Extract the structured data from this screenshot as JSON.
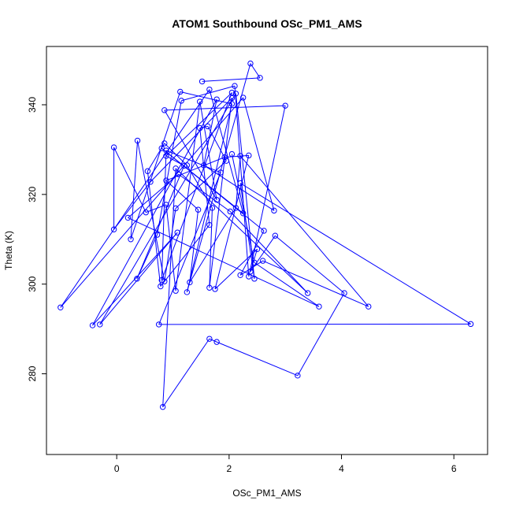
{
  "chart_data": {
    "type": "line",
    "title": "ATOM1 Southbound OSc_PM1_AMS",
    "xlabel": "OSc_PM1_AMS",
    "ylabel": "Theta (K)",
    "xlim": [
      -1.25,
      6.6
    ],
    "ylim": [
      262,
      353
    ],
    "xticks": [
      0,
      2,
      4,
      6
    ],
    "yticks": [
      280,
      300,
      320,
      340
    ],
    "grid": false,
    "marker": "open-circle",
    "color": "#0000ff",
    "series": [
      {
        "points": [
          [
            1.52,
            345.2
          ],
          [
            2.55,
            346.0
          ],
          [
            2.38,
            349.2
          ],
          [
            1.25,
            298.2
          ],
          [
            2.05,
            340.2
          ],
          [
            1.13,
            342.9
          ],
          [
            0.25,
            310.0
          ],
          [
            0.37,
            332.0
          ],
          [
            0.85,
            300.6
          ],
          [
            1.05,
            316.9
          ],
          [
            1.95,
            327.5
          ],
          [
            1.62,
            335.2
          ],
          [
            1.48,
            334.8
          ],
          [
            1.65,
            313.2
          ],
          [
            0.78,
            299.5
          ],
          [
            0.55,
            325.2
          ],
          [
            0.85,
            331.4
          ],
          [
            1.25,
            326.5
          ],
          [
            1.7,
            317.0
          ],
          [
            1.65,
            299.2
          ],
          [
            2.05,
            341.5
          ],
          [
            0.6,
            322.8
          ],
          [
            -0.05,
            312.2
          ],
          [
            -0.05,
            330.5
          ],
          [
            0.52,
            316.0
          ],
          [
            0.88,
            317.7
          ],
          [
            1.05,
            298.5
          ],
          [
            1.48,
            340.7
          ],
          [
            1.78,
            318.8
          ],
          [
            0.85,
            338.8
          ],
          [
            3.0,
            339.8
          ],
          [
            2.35,
            301.7
          ],
          [
            2.1,
            344.2
          ],
          [
            1.15,
            340.9
          ],
          [
            0.72,
            311.0
          ],
          [
            0.36,
            301.2
          ],
          [
            1.2,
            326.4
          ],
          [
            0.88,
            328.6
          ],
          [
            2.05,
            342.7
          ],
          [
            0.8,
            300.9
          ],
          [
            0.88,
            329.8
          ],
          [
            1.85,
            324.9
          ],
          [
            0.75,
            291.0
          ],
          [
            6.3,
            291.1
          ],
          [
            2.2,
            322.5
          ],
          [
            2.45,
            301.2
          ],
          [
            2.12,
            342.5
          ],
          [
            -0.3,
            291.0
          ],
          [
            1.08,
            311.5
          ],
          [
            -0.43,
            290.8
          ],
          [
            1.78,
            341.2
          ],
          [
            1.55,
            326.5
          ],
          [
            2.8,
            316.4
          ],
          [
            2.25,
            341.6
          ],
          [
            -1.0,
            294.8
          ],
          [
            1.65,
            343.4
          ],
          [
            2.25,
            315.8
          ],
          [
            0.8,
            330.3
          ],
          [
            2.62,
            311.9
          ],
          [
            2.2,
            302.0
          ],
          [
            2.6,
            305.2
          ],
          [
            4.48,
            295.0
          ],
          [
            2.2,
            328.6
          ],
          [
            2.12,
            317.0
          ],
          [
            1.3,
            300.4
          ],
          [
            1.45,
            316.6
          ],
          [
            0.88,
            323.1
          ],
          [
            1.92,
            328.3
          ],
          [
            2.35,
            328.7
          ],
          [
            1.75,
            298.9
          ],
          [
            2.5,
            307.8
          ],
          [
            2.38,
            302.8
          ],
          [
            2.82,
            310.8
          ],
          [
            4.05,
            298.0
          ],
          [
            3.22,
            279.6
          ],
          [
            1.78,
            287.1
          ],
          [
            1.65,
            287.8
          ],
          [
            0.82,
            272.6
          ],
          [
            1.05,
            325.8
          ],
          [
            3.4,
            298.0
          ],
          [
            2.02,
            316.2
          ],
          [
            1.1,
            324.5
          ],
          [
            0.2,
            314.8
          ],
          [
            3.6,
            295.0
          ],
          [
            2.45,
            304.8
          ],
          [
            2.05,
            329.0
          ]
        ]
      }
    ]
  }
}
